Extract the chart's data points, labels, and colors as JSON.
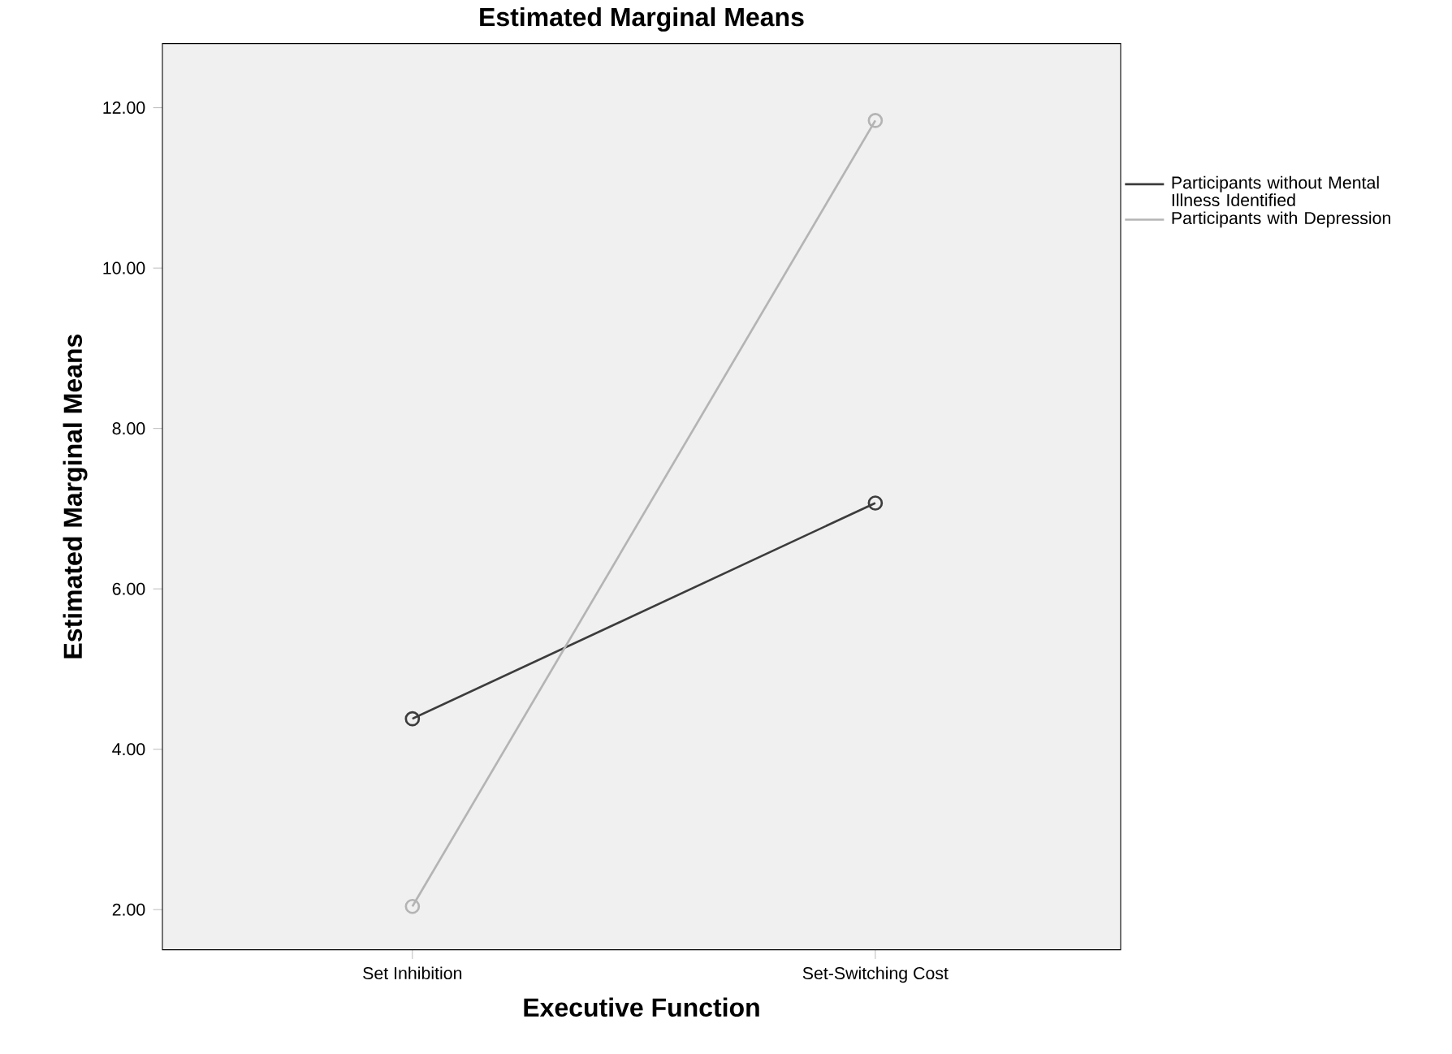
{
  "chart_data": {
    "type": "line",
    "title": "Estimated Marginal Means",
    "xlabel": "Executive Function",
    "ylabel": "Estimated Marginal Means",
    "categories": [
      "Set Inhibition",
      "Set-Switching Cost"
    ],
    "series": [
      {
        "name": "Participants without Mental Illness Identified",
        "color": "#3c3c3c",
        "values": [
          4.38,
          7.07
        ]
      },
      {
        "name": "Participants with Depression",
        "color": "#b4b4b4",
        "values": [
          2.04,
          11.84
        ]
      }
    ],
    "ylim": [
      1.5,
      12.8
    ],
    "yticks": [
      {
        "value": 2,
        "label": "2.00"
      },
      {
        "value": 4,
        "label": "4.00"
      },
      {
        "value": 6,
        "label": "6.00"
      },
      {
        "value": 8,
        "label": "8.00"
      },
      {
        "value": 10,
        "label": "10.00"
      },
      {
        "value": 12,
        "label": "12.00"
      }
    ],
    "legend": "top right",
    "marker": "circle",
    "line_style": "solid",
    "grid": false
  }
}
